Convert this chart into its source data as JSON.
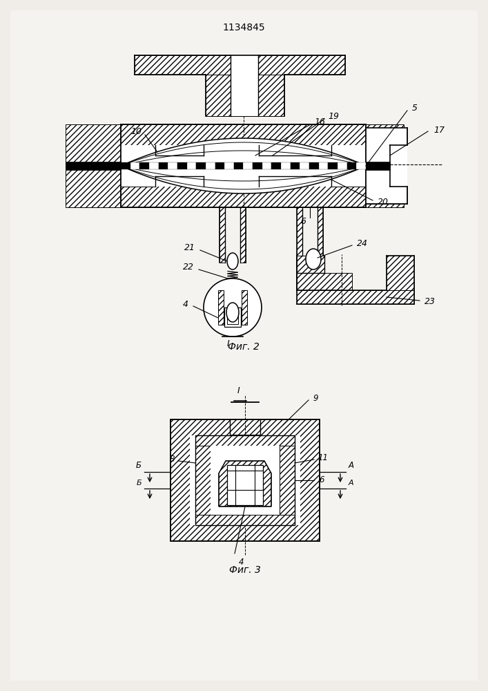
{
  "title": "1134845",
  "fig2_label": "Фиг. 2",
  "fig3_label": "Фиг. 3",
  "bg_color": "#f0ede8",
  "line_color": "#000000"
}
